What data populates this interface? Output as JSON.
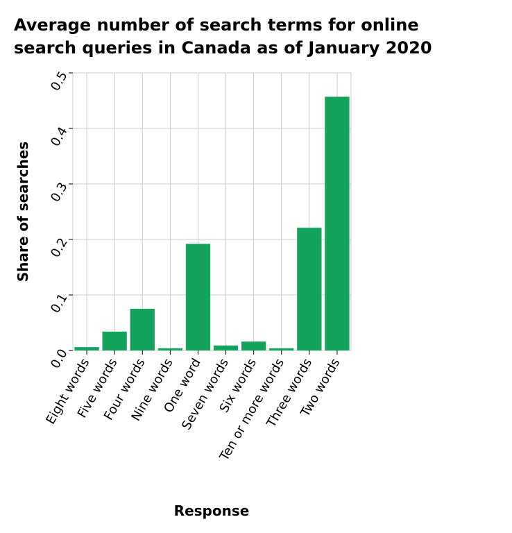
{
  "chart_data": {
    "type": "bar",
    "title": "Average number of search terms for online search queries in Canada as of January 2020",
    "title_lines": [
      "Average number of search terms for online",
      "search queries in Canada as of January 2020"
    ],
    "xlabel": "Response",
    "ylabel": "Share of searches",
    "categories": [
      "Eight words",
      "Five words",
      "Four words",
      "Nine words",
      "One word",
      "Seven words",
      "Six words",
      "Ten or more words",
      "Three words",
      "Two words"
    ],
    "values": [
      0.006,
      0.034,
      0.075,
      0.004,
      0.192,
      0.009,
      0.016,
      0.004,
      0.221,
      0.457
    ],
    "ylim": [
      0,
      0.5
    ],
    "yticks": [
      "0.0",
      "0.1",
      "0.2",
      "0.3",
      "0.4",
      "0.5"
    ],
    "grid": true,
    "bar_color": "#14a35c"
  }
}
